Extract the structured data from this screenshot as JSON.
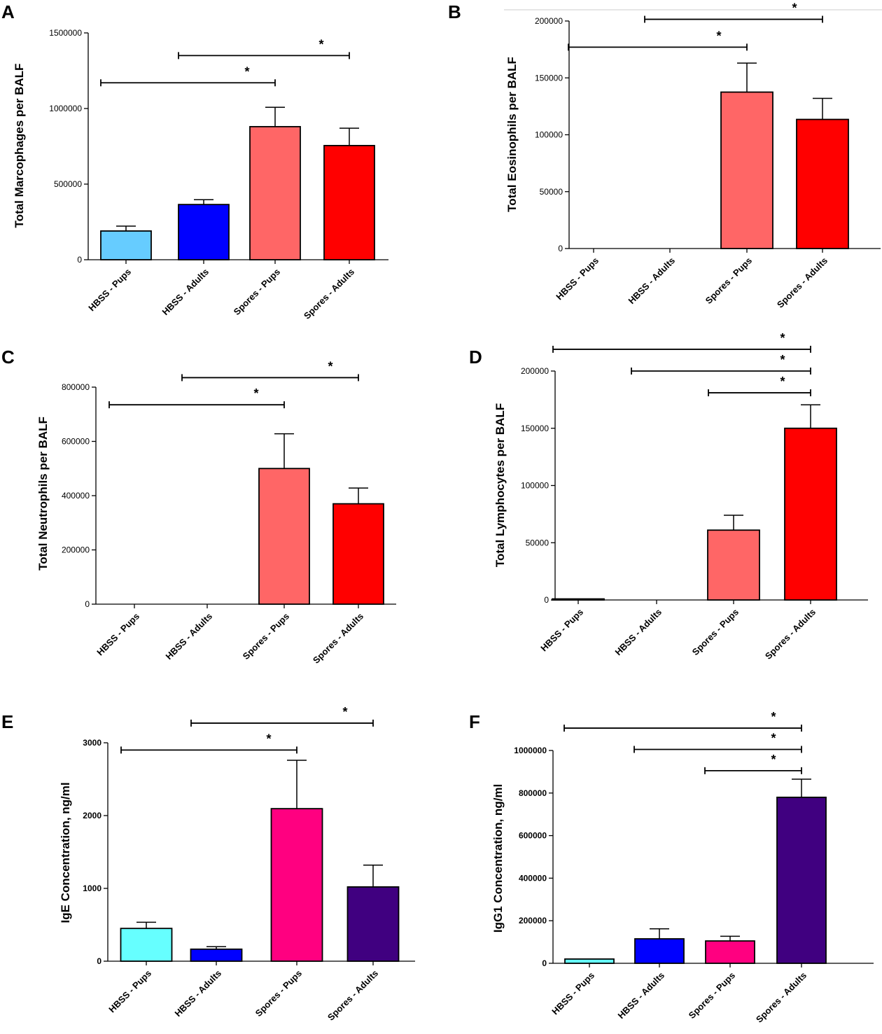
{
  "chart_data": [
    {
      "panel": "A",
      "type": "bar",
      "ylabel": "Total  Marcophages  per BALF",
      "ylim": [
        0,
        1500000
      ],
      "yticks": [
        0,
        500000,
        1000000,
        1500000
      ],
      "categories": [
        "HBSS - Pups",
        "HBSS - Adults",
        "Spores - Pups",
        "Spores - Adults"
      ],
      "values": [
        190000,
        365000,
        880000,
        755000
      ],
      "errors": [
        32000,
        32000,
        128000,
        115000
      ],
      "colors": [
        "#66ccff",
        "#0000ff",
        "#ff6666",
        "#ff0000"
      ],
      "comparisons": [
        {
          "from": 0,
          "to": 2,
          "level": 1170000,
          "label": "*"
        },
        {
          "from": 1,
          "to": 3,
          "level": 1350000,
          "label": "*"
        }
      ]
    },
    {
      "panel": "B",
      "type": "bar",
      "ylabel": "Total Eosinophils per BALF",
      "ylim": [
        0,
        200000
      ],
      "yticks": [
        0,
        50000,
        100000,
        150000,
        200000
      ],
      "categories": [
        "HBSS - Pups",
        "HBSS - Adults",
        "Spores - Pups",
        "Spores - Adults"
      ],
      "values": [
        0,
        0,
        137500,
        113500
      ],
      "errors": [
        0,
        0,
        25500,
        18500
      ],
      "colors": [
        "#66ccff",
        "#0000ff",
        "#ff6666",
        "#ff0000"
      ],
      "comparisons": [
        {
          "from": 0,
          "to": 2,
          "level": 177000,
          "label": "*"
        },
        {
          "from": 1,
          "to": 3,
          "level": 201500,
          "label": "*"
        }
      ]
    },
    {
      "panel": "C",
      "type": "bar",
      "ylabel": "Total Neutrophils per BALF",
      "ylim": [
        0,
        800000
      ],
      "yticks": [
        0,
        200000,
        400000,
        600000,
        800000
      ],
      "categories": [
        "HBSS - Pups",
        "HBSS - Adults",
        "Spores - Pups",
        "Spores - Adults"
      ],
      "values": [
        0,
        0,
        500000,
        370000
      ],
      "errors": [
        0,
        0,
        128000,
        58000
      ],
      "colors": [
        "#66ccff",
        "#0000ff",
        "#ff6666",
        "#ff0000"
      ],
      "comparisons": [
        {
          "from": 0,
          "to": 2,
          "level": 735000,
          "label": "*"
        },
        {
          "from": 1,
          "to": 3,
          "level": 835000,
          "label": "*"
        }
      ]
    },
    {
      "panel": "D",
      "type": "bar",
      "ylabel": "Total Lymphocytes per BALF",
      "ylim": [
        0,
        200000
      ],
      "yticks": [
        0,
        50000,
        100000,
        150000,
        200000
      ],
      "categories": [
        "HBSS - Pups",
        "HBSS - Adults",
        "Spores - Pups",
        "Spores - Adults"
      ],
      "values": [
        300,
        0,
        61000,
        150000
      ],
      "errors": [
        0,
        0,
        13000,
        20500
      ],
      "colors": [
        "#66ccff",
        "#0000ff",
        "#ff6666",
        "#ff0000"
      ],
      "comparisons": [
        {
          "from": 2,
          "to": 3,
          "level": 181000,
          "label": "*"
        },
        {
          "from": 1,
          "to": 3,
          "level": 200000,
          "label": "*"
        },
        {
          "from": 0,
          "to": 3,
          "level": 219000,
          "label": "*"
        }
      ]
    },
    {
      "panel": "E",
      "type": "bar",
      "ylabel": "IgE Concentration, ng/ml",
      "ylim": [
        0,
        3000
      ],
      "yticks": [
        0,
        1000,
        2000,
        3000
      ],
      "categories": [
        "HBSS - Pups",
        "HBSS - Adults",
        "Spores - Pups",
        "Spores - Adults"
      ],
      "values": [
        450,
        165,
        2095,
        1020
      ],
      "errors": [
        85,
        35,
        665,
        300
      ],
      "colors": [
        "#66ffff",
        "#0000ff",
        "#ff0080",
        "#400080"
      ],
      "comparisons": [
        {
          "from": 0,
          "to": 2,
          "level": 2900,
          "label": "*"
        },
        {
          "from": 1,
          "to": 3,
          "level": 3270,
          "label": "*"
        }
      ]
    },
    {
      "panel": "F",
      "type": "bar",
      "ylabel": "IgG1 Concentration, ng/ml",
      "ylim": [
        0,
        1000000
      ],
      "yticks": [
        0,
        200000,
        400000,
        600000,
        800000,
        1000000
      ],
      "categories": [
        "HBSS - Pups",
        "HBSS - Adults",
        "Spores - Pups",
        "Spores - Adults"
      ],
      "values": [
        20000,
        115000,
        105000,
        780000
      ],
      "errors": [
        0,
        47000,
        22000,
        85000
      ],
      "colors": [
        "#66ffff",
        "#0000ff",
        "#ff0080",
        "#400080"
      ],
      "comparisons": [
        {
          "from": 2,
          "to": 3,
          "level": 905000,
          "label": "*"
        },
        {
          "from": 1,
          "to": 3,
          "level": 1005000,
          "label": "*"
        },
        {
          "from": 0,
          "to": 3,
          "level": 1105000,
          "label": "*"
        }
      ]
    }
  ]
}
